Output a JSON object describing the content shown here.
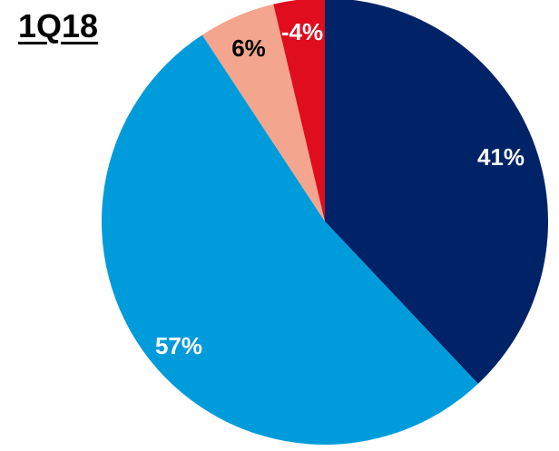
{
  "chart_data": {
    "type": "pie",
    "title": "1Q18",
    "series": [
      {
        "values": [
          41,
          57,
          6,
          -4
        ],
        "colors": [
          "#002368",
          "#009bdb",
          "#f3a68d",
          "#e00d1f"
        ],
        "labels": [
          "41%",
          "57%",
          "6%",
          "-4%"
        ],
        "label_colors": [
          "#ffffff",
          "#ffffff",
          "#000000",
          "#ffffff"
        ]
      }
    ],
    "legend": "none"
  }
}
